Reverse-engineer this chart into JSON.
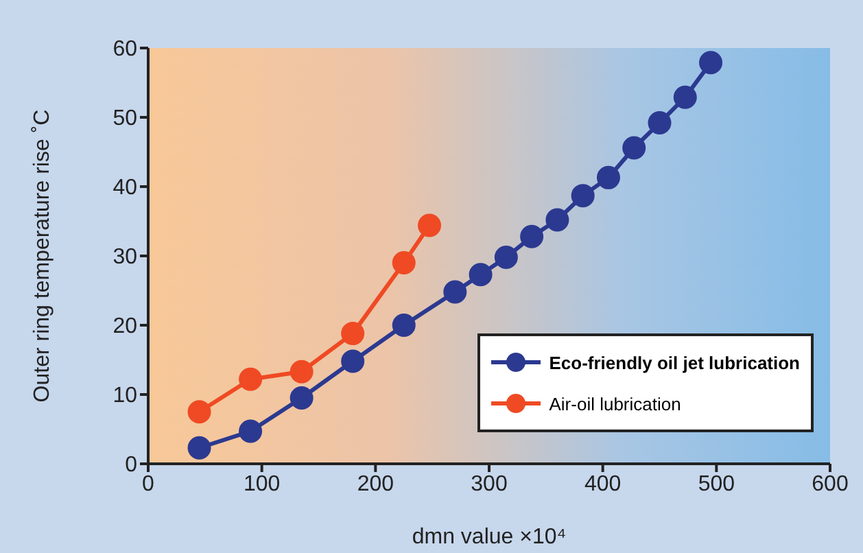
{
  "chart_data": {
    "type": "line",
    "xlabel": "dmn value    ×10⁴",
    "ylabel": "Outer ring temperature rise  ˚C",
    "xlim": [
      0,
      600
    ],
    "xticks": [
      0,
      100,
      200,
      300,
      400,
      500,
      600
    ],
    "ylim": [
      0,
      60
    ],
    "yticks": [
      0,
      10,
      20,
      30,
      40,
      50,
      60
    ],
    "grid": false,
    "legend": "bottom right",
    "marker": "circle",
    "line_style": "solid",
    "series": [
      {
        "name": "Eco-friendly oil jet lubrication",
        "color": "#2b3990",
        "x": [
          45,
          90,
          135,
          180,
          225,
          270,
          292.5,
          315,
          337.5,
          360,
          382.5,
          405,
          427.5,
          450,
          472.5,
          495
        ],
        "values": [
          2.3,
          4.7,
          9.5,
          14.8,
          20.0,
          24.8,
          27.3,
          29.8,
          32.8,
          35.2,
          38.7,
          41.3,
          45.6,
          49.2,
          52.9,
          57.9
        ]
      },
      {
        "name": "Air-oil lubrication",
        "color": "#ef4a24",
        "x": [
          45,
          90,
          135,
          180,
          225,
          247.5
        ],
        "values": [
          7.5,
          12.2,
          13.3,
          18.8,
          29.0,
          34.4
        ]
      }
    ]
  }
}
